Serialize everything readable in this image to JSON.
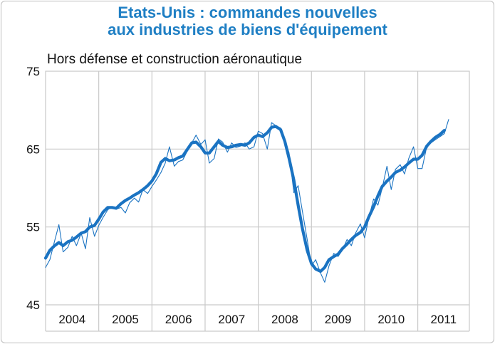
{
  "chart_data": {
    "type": "line",
    "title": "Etats-Unis : commandes nouvelles\naux industries de biens d'équipement",
    "title_lines": [
      "Etats-Unis : commandes nouvelles",
      "aux industries de biens d'équipement"
    ],
    "subtitle": "Hors défense et construction aéronautique",
    "ylim": [
      45,
      75
    ],
    "yticks": [
      45,
      55,
      65,
      75
    ],
    "ytick_labels": [
      "45",
      "55",
      "65",
      "75"
    ],
    "xlim": [
      2004,
      2011.97
    ],
    "year_labels": [
      "2004",
      "2005",
      "2006",
      "2007",
      "2008",
      "2009",
      "2010",
      "2011"
    ],
    "grid": true,
    "colors": {
      "title": "#1f7fc4",
      "series": "#1a73c2",
      "grid": "#c9c9c9"
    },
    "series": [
      {
        "style": "thin",
        "x": [
          2004.0,
          2004.08,
          2004.17,
          2004.25,
          2004.33,
          2004.42,
          2004.5,
          2004.58,
          2004.67,
          2004.75,
          2004.83,
          2004.92,
          2005.0,
          2005.08,
          2005.17,
          2005.25,
          2005.33,
          2005.42,
          2005.5,
          2005.58,
          2005.67,
          2005.75,
          2005.83,
          2005.92,
          2006.0,
          2006.08,
          2006.17,
          2006.25,
          2006.33,
          2006.42,
          2006.5,
          2006.58,
          2006.67,
          2006.75,
          2006.83,
          2006.92,
          2007.0,
          2007.08,
          2007.17,
          2007.25,
          2007.33,
          2007.42,
          2007.5,
          2007.58,
          2007.67,
          2007.75,
          2007.83,
          2007.92,
          2008.0,
          2008.08,
          2008.17,
          2008.25,
          2008.33,
          2008.42,
          2008.5,
          2008.58,
          2008.67,
          2008.75,
          2008.83,
          2008.92,
          2009.0,
          2009.08,
          2009.17,
          2009.25,
          2009.33,
          2009.42,
          2009.5,
          2009.58,
          2009.67,
          2009.75,
          2009.83,
          2009.92,
          2010.0,
          2010.08,
          2010.17,
          2010.25,
          2010.33,
          2010.42,
          2010.5,
          2010.58,
          2010.67,
          2010.75,
          2010.83,
          2010.92,
          2011.0,
          2011.08,
          2011.17,
          2011.25,
          2011.33,
          2011.42,
          2011.5,
          2011.58
        ],
        "values": [
          49.8,
          50.8,
          53.2,
          55.3,
          51.8,
          52.4,
          53.8,
          52.6,
          54.2,
          52.2,
          56.2,
          53.8,
          55.2,
          56.2,
          57.2,
          57.6,
          57.3,
          57.5,
          56.8,
          58.1,
          58.7,
          58.2,
          59.8,
          59.3,
          60.2,
          61.0,
          62.0,
          63.2,
          65.3,
          62.8,
          63.4,
          63.6,
          64.8,
          65.8,
          66.8,
          65.6,
          66.2,
          63.2,
          63.8,
          66.3,
          65.9,
          64.6,
          65.8,
          65.2,
          65.4,
          65.8,
          65.0,
          65.3,
          67.3,
          67.0,
          65.0,
          68.4,
          68.0,
          67.7,
          66.3,
          64.5,
          59.4,
          60.3,
          57.0,
          53.4,
          50.0,
          50.8,
          49.1,
          47.9,
          50.0,
          51.6,
          51.2,
          52.0,
          53.4,
          52.6,
          54.2,
          55.4,
          53.6,
          56.2,
          58.6,
          57.8,
          60.0,
          62.8,
          59.8,
          62.4,
          63.0,
          61.8,
          63.8,
          65.3,
          62.5,
          62.5,
          65.4,
          65.8,
          66.2,
          66.6,
          67.0,
          68.8
        ]
      },
      {
        "style": "thick",
        "x": [
          2004.0,
          2004.08,
          2004.17,
          2004.25,
          2004.33,
          2004.42,
          2004.5,
          2004.58,
          2004.67,
          2004.75,
          2004.83,
          2004.92,
          2005.0,
          2005.08,
          2005.17,
          2005.25,
          2005.33,
          2005.42,
          2005.5,
          2005.58,
          2005.67,
          2005.75,
          2005.83,
          2005.92,
          2006.0,
          2006.08,
          2006.17,
          2006.25,
          2006.33,
          2006.42,
          2006.5,
          2006.58,
          2006.67,
          2006.75,
          2006.83,
          2006.92,
          2007.0,
          2007.08,
          2007.17,
          2007.25,
          2007.33,
          2007.42,
          2007.5,
          2007.58,
          2007.67,
          2007.75,
          2007.83,
          2007.92,
          2008.0,
          2008.08,
          2008.17,
          2008.25,
          2008.33,
          2008.42,
          2008.5,
          2008.58,
          2008.67,
          2008.75,
          2008.83,
          2008.92,
          2009.0,
          2009.08,
          2009.17,
          2009.25,
          2009.33,
          2009.42,
          2009.5,
          2009.58,
          2009.67,
          2009.75,
          2009.83,
          2009.92,
          2010.0,
          2010.08,
          2010.17,
          2010.25,
          2010.33,
          2010.42,
          2010.5,
          2010.58,
          2010.67,
          2010.75,
          2010.83,
          2010.92,
          2011.0,
          2011.08,
          2011.17,
          2011.25,
          2011.33,
          2011.42,
          2011.5
        ],
        "values": [
          51.0,
          52.0,
          52.6,
          53.0,
          52.6,
          53.1,
          53.3,
          53.7,
          54.2,
          54.4,
          55.0,
          55.2,
          56.0,
          56.9,
          57.5,
          57.5,
          57.4,
          58.0,
          58.4,
          58.7,
          59.1,
          59.4,
          59.8,
          60.3,
          60.9,
          61.8,
          63.3,
          63.8,
          63.5,
          63.6,
          63.9,
          64.1,
          65.0,
          65.8,
          65.9,
          65.3,
          64.5,
          64.5,
          65.3,
          66.0,
          65.5,
          65.2,
          65.3,
          65.5,
          65.6,
          65.5,
          65.8,
          66.5,
          66.8,
          66.6,
          67.1,
          67.8,
          67.9,
          67.5,
          66.0,
          63.8,
          61.0,
          57.8,
          54.8,
          52.0,
          50.3,
          49.6,
          49.3,
          49.8,
          50.8,
          51.2,
          51.5,
          52.2,
          52.8,
          53.4,
          53.9,
          54.3,
          55.0,
          56.3,
          57.6,
          59.0,
          60.2,
          60.9,
          61.4,
          62.0,
          62.3,
          62.7,
          63.2,
          63.7,
          63.7,
          64.2,
          65.4,
          66.0,
          66.5,
          66.9,
          67.4
        ]
      }
    ]
  }
}
